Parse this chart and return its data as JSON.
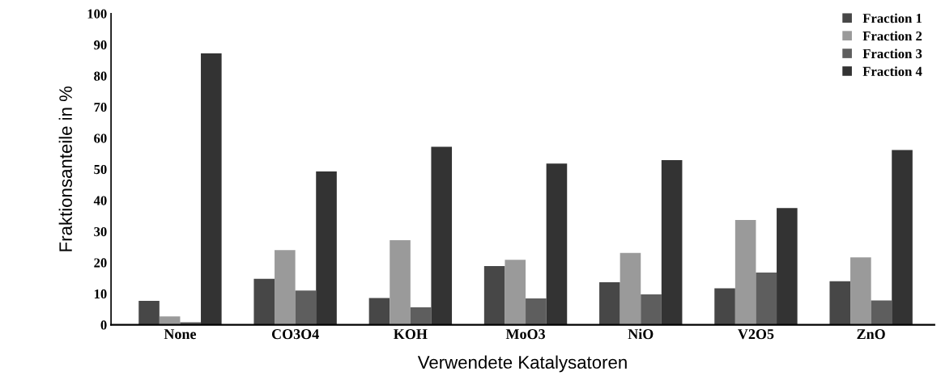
{
  "chart_data": {
    "type": "bar",
    "xlabel": "Verwendete Katalysatoren",
    "ylabel": "Fraktionsanteile in %",
    "categories": [
      "None",
      "CO3O4",
      "KOH",
      "MoO3",
      "NiO",
      "V2O5",
      "ZnO"
    ],
    "series": [
      {
        "name": "Fraction 1",
        "color": "#474747",
        "values": [
          7.7,
          14.8,
          8.6,
          18.9,
          13.7,
          11.7,
          14.0
        ]
      },
      {
        "name": "Fraction 2",
        "color": "#9a9a9a",
        "values": [
          2.7,
          24.0,
          27.2,
          20.9,
          23.1,
          33.7,
          21.7
        ]
      },
      {
        "name": "Fraction 3",
        "color": "#5e5e5e",
        "values": [
          0.8,
          11.0,
          5.6,
          8.5,
          9.8,
          16.8,
          7.8
        ]
      },
      {
        "name": "Fraction 4",
        "color": "#333333",
        "values": [
          87.2,
          49.3,
          57.2,
          51.8,
          52.9,
          37.5,
          56.2
        ]
      }
    ],
    "ylim": [
      0,
      100
    ],
    "yticks": [
      0,
      10,
      20,
      30,
      40,
      50,
      60,
      70,
      80,
      90,
      100
    ],
    "grid": false,
    "legend": "top right"
  }
}
